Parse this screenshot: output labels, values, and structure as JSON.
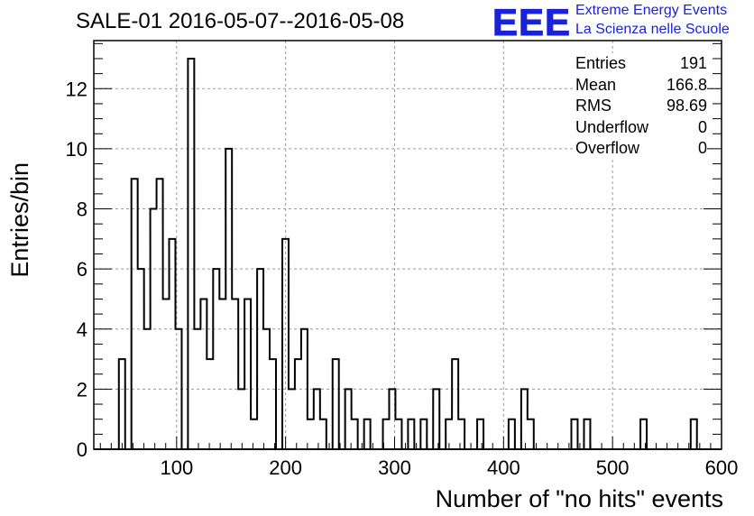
{
  "title": "SALE-01 2016-05-07--2016-05-08",
  "logo": {
    "mark": "EEE",
    "line1": "Extreme Energy Events",
    "line2": "La Scienza nelle Scuole",
    "color": "#1a22d8"
  },
  "stats": [
    {
      "label": "Entries",
      "value": "191"
    },
    {
      "label": "Mean",
      "value": "166.8"
    },
    {
      "label": "RMS",
      "value": "98.69"
    },
    {
      "label": "Underflow",
      "value": "0"
    },
    {
      "label": "Overflow",
      "value": "0"
    }
  ],
  "chart_data": {
    "type": "bar",
    "style": "histogram-step",
    "xlabel": "Number of \"no hits\" events",
    "ylabel": "Entries/bin",
    "xlim": [
      24,
      600
    ],
    "ylim": [
      0,
      13.6
    ],
    "x_ticks": [
      100,
      200,
      300,
      400,
      500,
      600
    ],
    "y_ticks": [
      0,
      2,
      4,
      6,
      8,
      10,
      12
    ],
    "bin_width": 5.76,
    "grid": true,
    "line_color": "#000000",
    "bins": [
      {
        "x0": 47.0,
        "y": 3
      },
      {
        "x0": 58.5,
        "y": 9
      },
      {
        "x0": 64.3,
        "y": 6
      },
      {
        "x0": 70.1,
        "y": 4
      },
      {
        "x0": 75.8,
        "y": 8
      },
      {
        "x0": 81.6,
        "y": 9
      },
      {
        "x0": 87.4,
        "y": 5
      },
      {
        "x0": 93.1,
        "y": 7
      },
      {
        "x0": 98.9,
        "y": 4
      },
      {
        "x0": 110.4,
        "y": 13
      },
      {
        "x0": 116.2,
        "y": 4
      },
      {
        "x0": 122.0,
        "y": 5
      },
      {
        "x0": 127.7,
        "y": 3
      },
      {
        "x0": 133.5,
        "y": 6
      },
      {
        "x0": 139.3,
        "y": 5
      },
      {
        "x0": 145.0,
        "y": 10
      },
      {
        "x0": 150.8,
        "y": 5
      },
      {
        "x0": 156.6,
        "y": 2
      },
      {
        "x0": 162.3,
        "y": 5
      },
      {
        "x0": 168.1,
        "y": 1
      },
      {
        "x0": 173.9,
        "y": 6
      },
      {
        "x0": 179.6,
        "y": 4
      },
      {
        "x0": 185.4,
        "y": 3
      },
      {
        "x0": 197.0,
        "y": 7
      },
      {
        "x0": 202.7,
        "y": 2
      },
      {
        "x0": 208.5,
        "y": 3
      },
      {
        "x0": 214.3,
        "y": 4
      },
      {
        "x0": 220.0,
        "y": 1
      },
      {
        "x0": 225.8,
        "y": 2
      },
      {
        "x0": 231.6,
        "y": 1
      },
      {
        "x0": 243.1,
        "y": 3
      },
      {
        "x0": 254.6,
        "y": 2
      },
      {
        "x0": 260.4,
        "y": 1
      },
      {
        "x0": 266.2,
        "y": 0
      },
      {
        "x0": 272.0,
        "y": 1
      },
      {
        "x0": 283.5,
        "y": 0
      },
      {
        "x0": 289.3,
        "y": 1
      },
      {
        "x0": 295.0,
        "y": 2
      },
      {
        "x0": 300.8,
        "y": 1
      },
      {
        "x0": 306.6,
        "y": 0
      },
      {
        "x0": 312.3,
        "y": 1
      },
      {
        "x0": 318.1,
        "y": 0
      },
      {
        "x0": 323.9,
        "y": 1
      },
      {
        "x0": 329.6,
        "y": 0
      },
      {
        "x0": 335.4,
        "y": 2
      },
      {
        "x0": 341.2,
        "y": 0
      },
      {
        "x0": 346.9,
        "y": 1
      },
      {
        "x0": 352.7,
        "y": 3
      },
      {
        "x0": 358.5,
        "y": 1
      },
      {
        "x0": 364.2,
        "y": 0
      },
      {
        "x0": 375.8,
        "y": 1
      },
      {
        "x0": 381.6,
        "y": 0
      },
      {
        "x0": 404.6,
        "y": 1
      },
      {
        "x0": 410.4,
        "y": 0
      },
      {
        "x0": 416.2,
        "y": 2
      },
      {
        "x0": 421.9,
        "y": 1
      },
      {
        "x0": 427.7,
        "y": 0
      },
      {
        "x0": 462.2,
        "y": 1
      },
      {
        "x0": 468.0,
        "y": 0
      },
      {
        "x0": 473.8,
        "y": 1
      },
      {
        "x0": 479.5,
        "y": 0
      },
      {
        "x0": 525.6,
        "y": 1
      },
      {
        "x0": 531.4,
        "y": 0
      },
      {
        "x0": 571.7,
        "y": 1
      },
      {
        "x0": 577.4,
        "y": 0
      }
    ]
  }
}
